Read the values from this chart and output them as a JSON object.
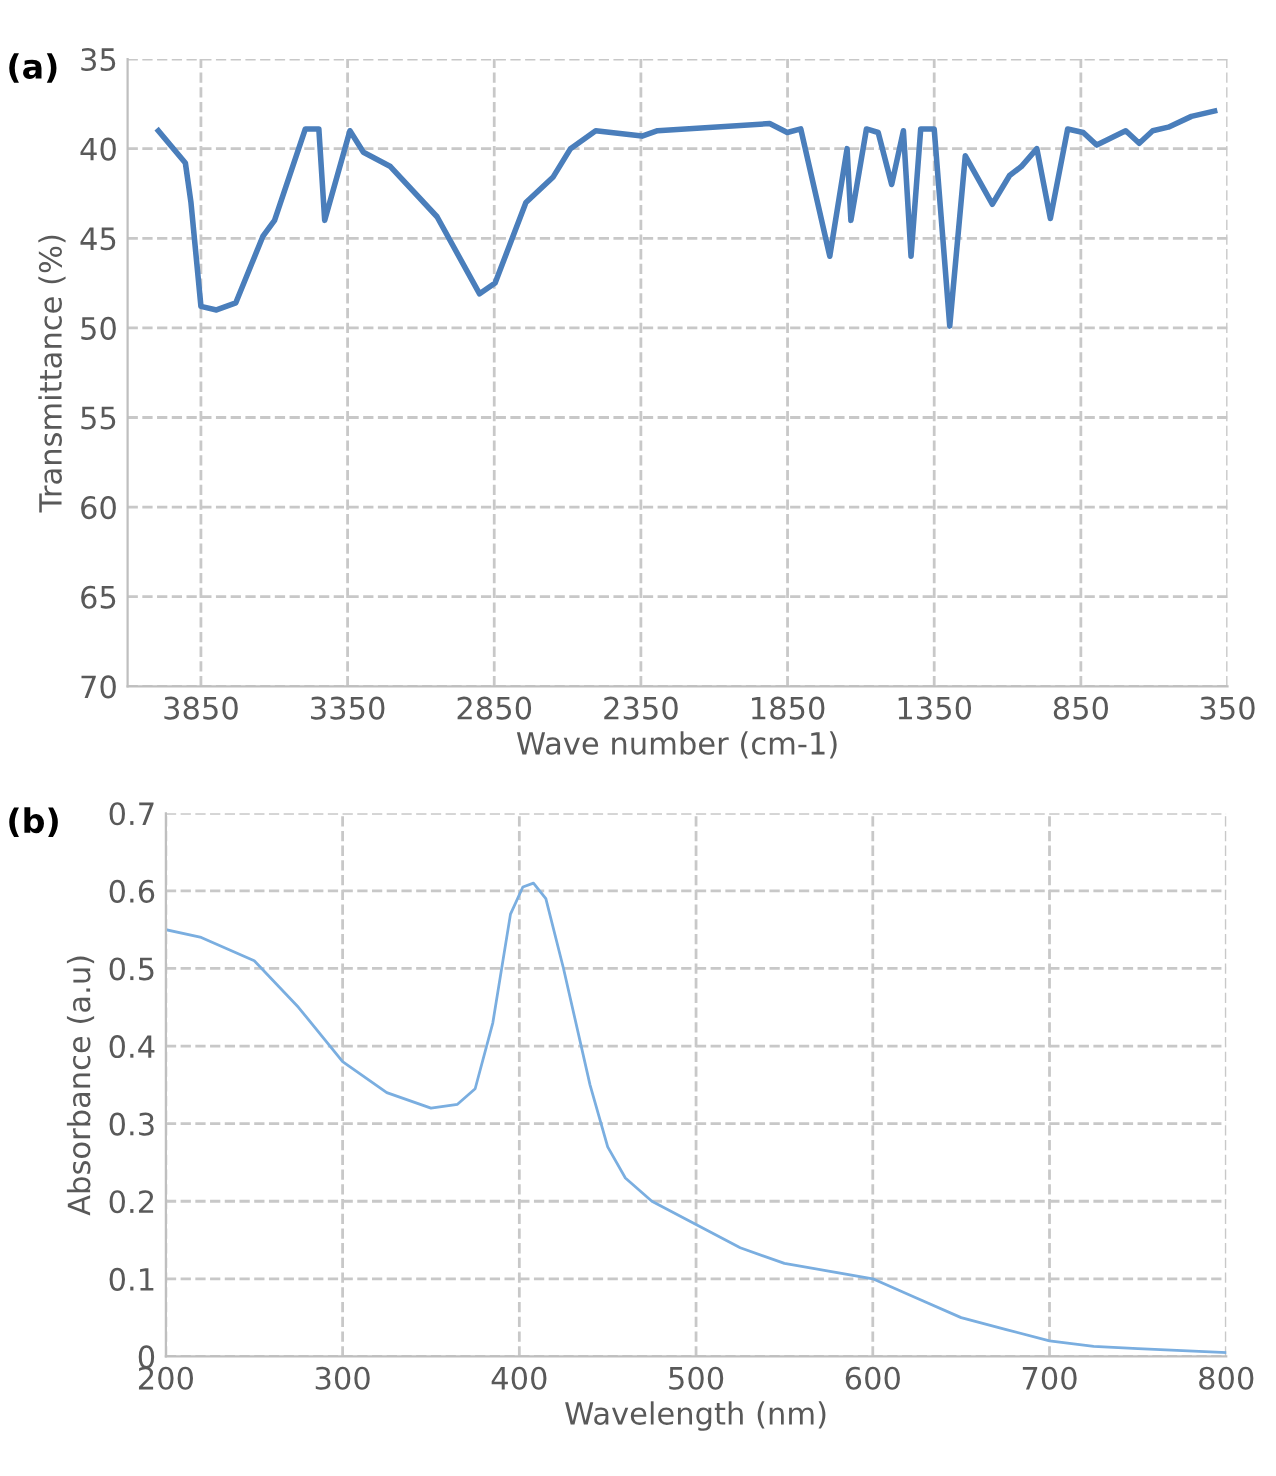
{
  "chart_data": [
    {
      "type": "line",
      "title": "(a)",
      "xlabel": "Wave number (cm-1)",
      "ylabel": "Transmittance (%)",
      "x": [
        3995,
        3903,
        3884,
        3850,
        3797,
        3731,
        3639,
        3599,
        3494,
        3448,
        3428,
        3342,
        3296,
        3204,
        3045,
        2900,
        2847,
        2742,
        2650,
        2590,
        2504,
        2346,
        2293,
        1911,
        1851,
        1805,
        1706,
        1647,
        1634,
        1581,
        1541,
        1495,
        1455,
        1429,
        1396,
        1350,
        1297,
        1244,
        1152,
        1093,
        1053,
        1000,
        954,
        895,
        842,
        796,
        697,
        651,
        605,
        552,
        473,
        394
      ],
      "series": [
        {
          "color": "#4a7ebb",
          "values": [
            39.0,
            40.8,
            43.0,
            48.8,
            49.0,
            48.6,
            44.9,
            44.0,
            38.9,
            38.9,
            44.0,
            39.0,
            40.2,
            41.0,
            43.8,
            48.1,
            47.5,
            43.0,
            41.6,
            40.0,
            39.0,
            39.3,
            39.0,
            38.6,
            39.1,
            38.9,
            46.0,
            40.0,
            44.0,
            38.9,
            39.1,
            42.0,
            39.0,
            46.0,
            38.9,
            38.9,
            49.9,
            40.4,
            43.1,
            41.5,
            41.0,
            40.0,
            43.9,
            38.9,
            39.1,
            39.8,
            39.0,
            39.7,
            39.0,
            38.8,
            38.2,
            37.9
          ]
        }
      ],
      "xlim": [
        4100,
        350
      ],
      "xticks": [
        3850,
        3350,
        2850,
        2350,
        1850,
        1350,
        850,
        350
      ],
      "ylim": [
        70,
        35
      ],
      "yticks": [
        35,
        40,
        45,
        50,
        55,
        60,
        65,
        70
      ],
      "grid": true,
      "line_style": "solid",
      "marker": "none"
    },
    {
      "type": "line",
      "title": "(b)",
      "xlabel": "Wavelength (nm)",
      "ylabel": "Absorbance (a.u)",
      "x": [
        200,
        220,
        250,
        275,
        300,
        325,
        350,
        365,
        375,
        385,
        395,
        402,
        408,
        415,
        425,
        440,
        450,
        460,
        475,
        500,
        525,
        550,
        575,
        600,
        625,
        650,
        675,
        700,
        725,
        750,
        800
      ],
      "series": [
        {
          "color": "#7aaee0",
          "values": [
            0.55,
            0.54,
            0.51,
            0.45,
            0.38,
            0.34,
            0.32,
            0.325,
            0.345,
            0.43,
            0.57,
            0.605,
            0.61,
            0.59,
            0.5,
            0.35,
            0.27,
            0.23,
            0.2,
            0.17,
            0.14,
            0.12,
            0.11,
            0.1,
            0.075,
            0.05,
            0.035,
            0.02,
            0.013,
            0.01,
            0.005
          ]
        }
      ],
      "xlim": [
        200,
        800
      ],
      "xticks": [
        200,
        300,
        400,
        500,
        600,
        700,
        800
      ],
      "ylim": [
        0,
        0.7
      ],
      "yticks": [
        0,
        0.1,
        0.2,
        0.3,
        0.4,
        0.5,
        0.6,
        0.7
      ],
      "grid": true,
      "line_style": "solid",
      "marker": "none"
    }
  ]
}
